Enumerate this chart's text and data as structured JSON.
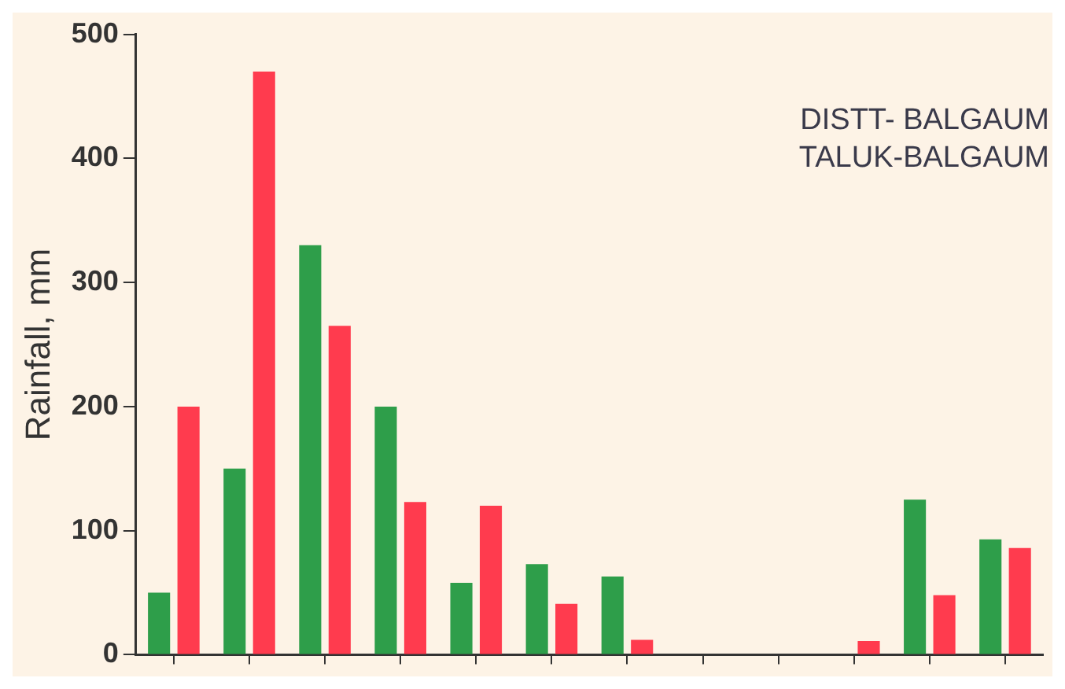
{
  "chart_data": {
    "type": "bar",
    "ylabel": "Rainfall, mm",
    "annotations": [
      "DISTT- BALGAUM",
      "TALUK-BALGAUM"
    ],
    "categories": [
      null,
      null,
      null,
      null,
      null,
      null,
      null,
      null,
      null,
      null,
      null,
      null
    ],
    "series": [
      {
        "color": "#2e9e4a",
        "values": [
          50,
          150,
          330,
          200,
          58,
          73,
          63,
          0,
          0,
          0,
          125,
          93
        ]
      },
      {
        "color": "#ff3b4e",
        "values": [
          200,
          470,
          265,
          123,
          120,
          41,
          12,
          0,
          0,
          11,
          48,
          86
        ]
      }
    ],
    "ylim": [
      0,
      500
    ],
    "yticks": [
      0,
      100,
      200,
      300,
      400,
      500
    ],
    "grid": false,
    "tick_labels": "y",
    "legend": false
  }
}
